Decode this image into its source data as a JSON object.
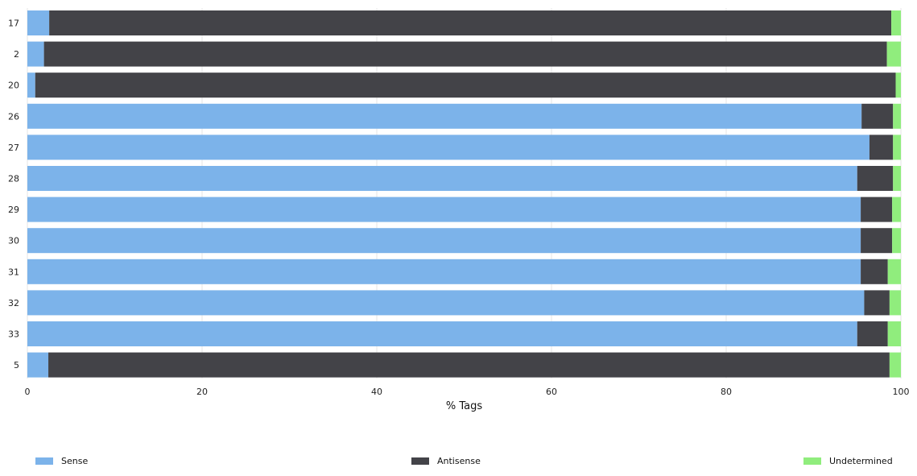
{
  "chart_data": {
    "type": "bar",
    "orientation": "horizontal",
    "stacked": true,
    "xlabel": "% Tags",
    "ylabel": "",
    "xlim": [
      0,
      100
    ],
    "x_ticks": [
      0,
      20,
      40,
      60,
      80,
      100
    ],
    "grid": true,
    "legend_position": "bottom",
    "categories": [
      "17",
      "2",
      "20",
      "26",
      "27",
      "28",
      "29",
      "30",
      "31",
      "32",
      "33",
      "5"
    ],
    "series": [
      {
        "name": "Sense",
        "color": "#7cb3ea",
        "values": [
          2.5,
          1.9,
          0.9,
          95.5,
          96.4,
          95.0,
          95.4,
          95.4,
          95.4,
          95.8,
          95.0,
          2.4
        ]
      },
      {
        "name": "Antisense",
        "color": "#434348",
        "values": [
          96.4,
          96.5,
          98.5,
          3.6,
          2.7,
          4.1,
          3.6,
          3.6,
          3.1,
          2.9,
          3.5,
          96.3
        ]
      },
      {
        "name": "Undetermined",
        "color": "#90ed7d",
        "values": [
          1.1,
          1.6,
          0.6,
          0.9,
          0.9,
          0.9,
          1.0,
          1.0,
          1.5,
          1.3,
          1.5,
          1.3
        ]
      }
    ]
  }
}
